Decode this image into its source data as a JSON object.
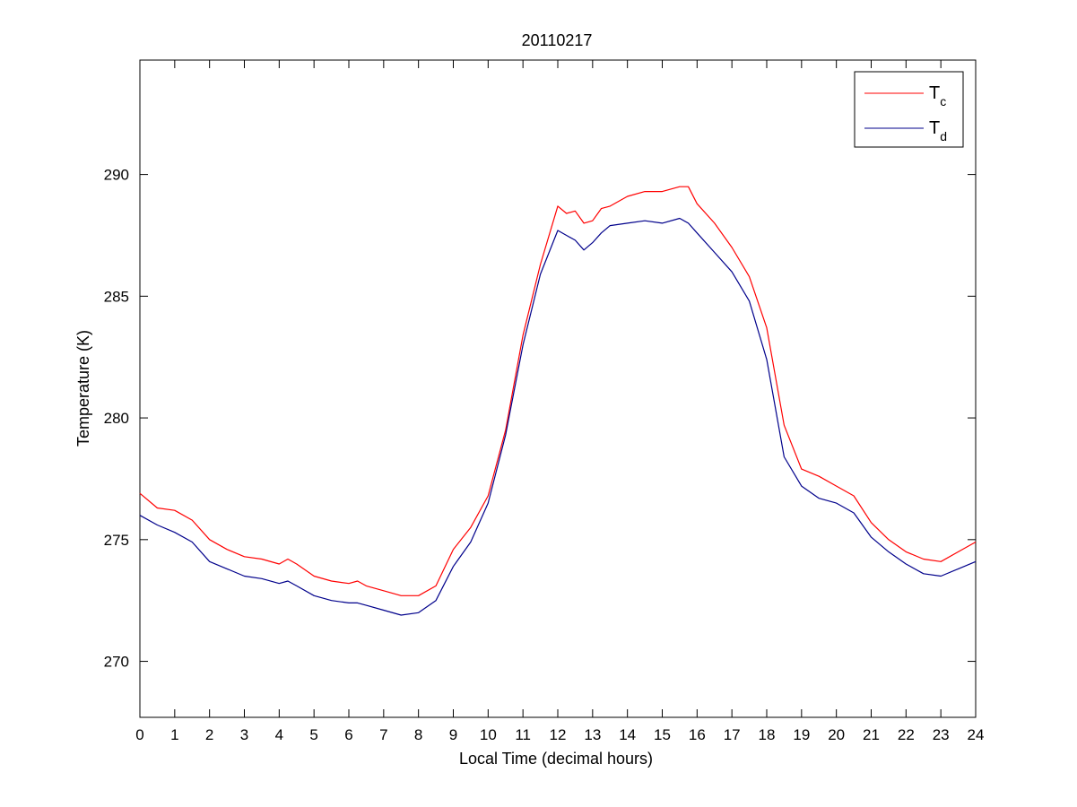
{
  "chart_data": {
    "type": "line",
    "title": "20110217",
    "xlabel": "Local Time (decimal hours)",
    "ylabel": "Temperature (K)",
    "xlim": [
      0,
      24
    ],
    "ylim": [
      267.7,
      294.7
    ],
    "x_ticks": [
      "0",
      "1",
      "2",
      "3",
      "4",
      "5",
      "6",
      "7",
      "8",
      "9",
      "10",
      "11",
      "12",
      "13",
      "14",
      "15",
      "16",
      "17",
      "18",
      "19",
      "20",
      "21",
      "22",
      "23",
      "24"
    ],
    "y_ticks": [
      "270",
      "275",
      "280",
      "285",
      "290"
    ],
    "grid": false,
    "legend_position": "top-right",
    "series": [
      {
        "name": "T",
        "subscript": "c",
        "color": "#ff0000",
        "x": [
          0,
          0.5,
          1,
          1.5,
          2,
          2.5,
          3,
          3.5,
          4,
          4.25,
          4.5,
          5,
          5.5,
          6,
          6.25,
          6.5,
          7,
          7.5,
          8,
          8.5,
          9,
          9.5,
          10,
          10.5,
          11,
          11.5,
          12,
          12.25,
          12.5,
          12.75,
          13,
          13.25,
          13.5,
          14,
          14.5,
          15,
          15.5,
          15.75,
          16,
          16.5,
          17,
          17.5,
          18,
          18.5,
          19,
          19.5,
          20,
          20.5,
          21,
          21.5,
          22,
          22.5,
          23,
          23.5,
          24
        ],
        "values": [
          276.9,
          276.3,
          276.2,
          275.8,
          275.0,
          274.6,
          274.3,
          274.2,
          274.0,
          274.2,
          274.0,
          273.5,
          273.3,
          273.2,
          273.3,
          273.1,
          272.9,
          272.7,
          272.7,
          273.1,
          274.6,
          275.5,
          276.8,
          279.5,
          283.4,
          286.3,
          288.7,
          288.4,
          288.5,
          288.0,
          288.1,
          288.6,
          288.7,
          289.1,
          289.3,
          289.3,
          289.5,
          289.5,
          288.8,
          288.0,
          287.0,
          285.8,
          283.7,
          279.7,
          277.9,
          277.6,
          277.2,
          276.8,
          275.7,
          275.0,
          274.5,
          274.2,
          274.1,
          274.5,
          274.9
        ]
      },
      {
        "name": "T",
        "subscript": "d",
        "color": "#00008b",
        "x": [
          0,
          0.5,
          1,
          1.5,
          2,
          2.5,
          3,
          3.5,
          4,
          4.25,
          4.5,
          5,
          5.5,
          6,
          6.25,
          6.5,
          7,
          7.5,
          8,
          8.5,
          9,
          9.5,
          10,
          10.5,
          11,
          11.5,
          12,
          12.25,
          12.5,
          12.75,
          13,
          13.25,
          13.5,
          14,
          14.5,
          15,
          15.5,
          15.75,
          16,
          16.5,
          17,
          17.5,
          18,
          18.5,
          19,
          19.5,
          20,
          20.5,
          21,
          21.5,
          22,
          22.5,
          23,
          23.5,
          24
        ],
        "values": [
          276.0,
          275.6,
          275.3,
          274.9,
          274.1,
          273.8,
          273.5,
          273.4,
          273.2,
          273.3,
          273.1,
          272.7,
          272.5,
          272.4,
          272.4,
          272.3,
          272.1,
          271.9,
          272.0,
          272.5,
          273.9,
          274.9,
          276.5,
          279.3,
          283.0,
          285.9,
          287.7,
          287.5,
          287.3,
          286.9,
          287.2,
          287.6,
          287.9,
          288.0,
          288.1,
          288.0,
          288.2,
          288.0,
          287.6,
          286.8,
          286.0,
          284.8,
          282.4,
          278.4,
          277.2,
          276.7,
          276.5,
          276.1,
          275.1,
          274.5,
          274.0,
          273.6,
          273.5,
          273.8,
          274.1
        ]
      }
    ]
  }
}
